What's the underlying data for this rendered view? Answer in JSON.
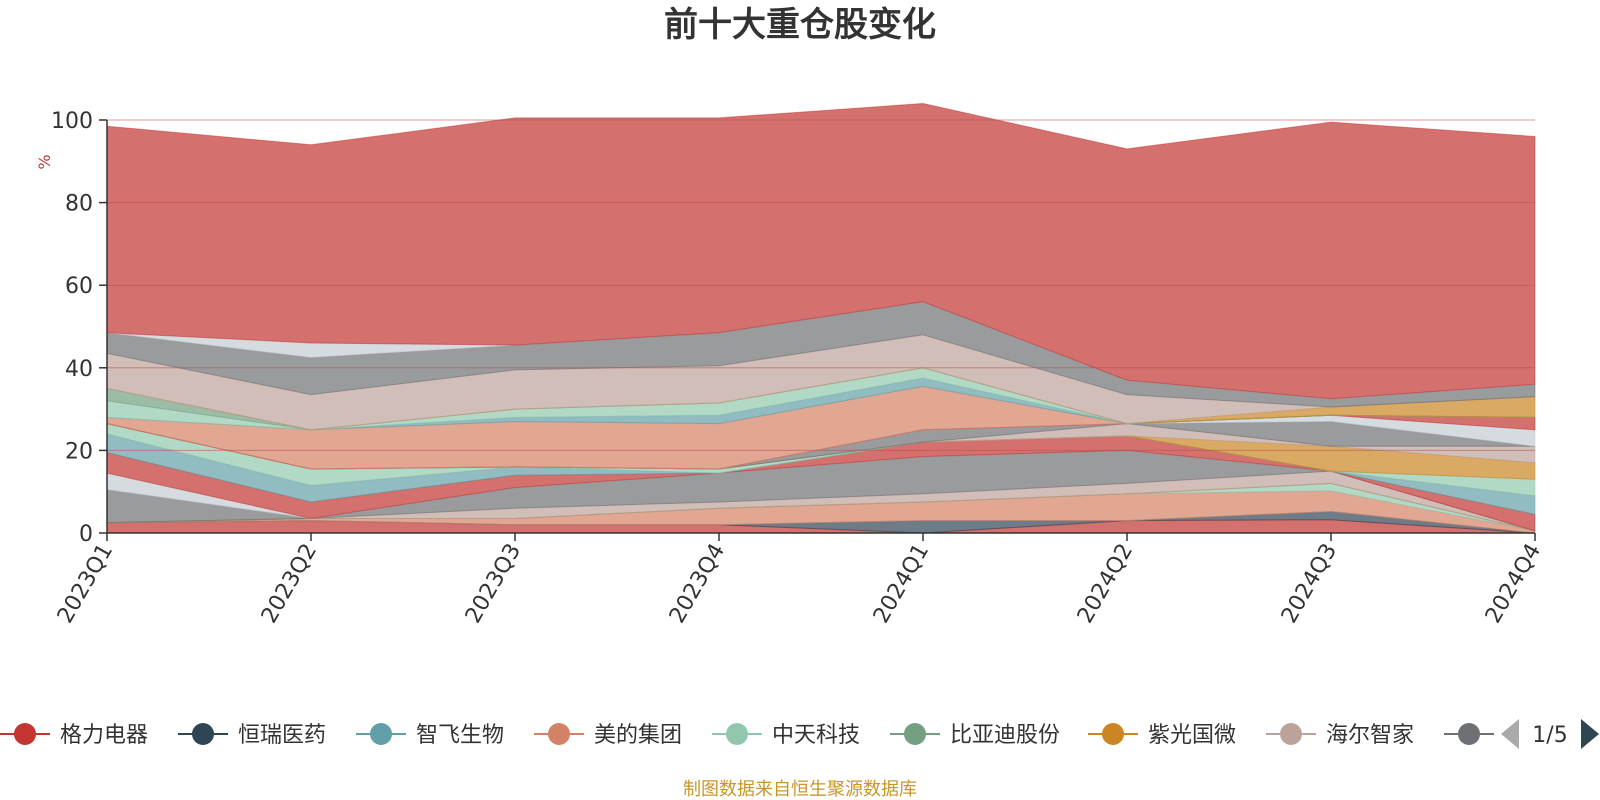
{
  "chart_data": {
    "type": "area",
    "stacked": true,
    "title": "前十大重仓股变化",
    "ylabel": "%",
    "ylim": [
      0,
      100
    ],
    "yticks": [
      0,
      20,
      40,
      60,
      80,
      100
    ],
    "categories": [
      "2023Q1",
      "2023Q2",
      "2023Q3",
      "2023Q4",
      "2024Q1",
      "2024Q2",
      "2024Q3",
      "2024Q4"
    ],
    "series": [
      {
        "name": "格力电器",
        "color": "#c23531",
        "values": [
          2.5,
          3,
          2,
          2,
          0,
          3,
          3.2,
          0
        ]
      },
      {
        "name": "恒瑞医药",
        "color": "#2f4554",
        "values": [
          0,
          0,
          0,
          0,
          3,
          0,
          2,
          0
        ]
      },
      {
        "name": "智飞生物",
        "color": "#61a0a8",
        "values": [
          0,
          0,
          0,
          0,
          0,
          0,
          0,
          0
        ]
      },
      {
        "name": "美的集团",
        "color": "#d48265",
        "values": [
          0,
          0.5,
          1.5,
          4,
          4.5,
          6.5,
          5,
          0.5
        ]
      },
      {
        "name": "中天科技",
        "color": "#91c7ae",
        "values": [
          0,
          0,
          0,
          0,
          0,
          0,
          1.8,
          0
        ]
      },
      {
        "name": "比亚迪股份",
        "color": "#749f83",
        "values": [
          0,
          0,
          0,
          0,
          0,
          0,
          0,
          0
        ]
      },
      {
        "name": "紫光国微",
        "color": "#ca8622",
        "values": [
          0,
          0,
          0,
          0,
          0,
          0,
          0,
          0
        ]
      },
      {
        "name": "海尔智家",
        "color": "#bda29a",
        "values": [
          0,
          0,
          2.5,
          1.5,
          2,
          2.5,
          3,
          0
        ]
      },
      {
        "name": "",
        "color": "#6e7074",
        "values": [
          8,
          0,
          5,
          7,
          9,
          8,
          0,
          0
        ]
      },
      {
        "name": "",
        "color": "#c4ccd3",
        "values": [
          4,
          0,
          0,
          0,
          0,
          0,
          0,
          0
        ]
      },
      {
        "name": "",
        "color": "#c23531",
        "values": [
          5,
          4,
          3,
          0,
          3.5,
          3.5,
          0,
          4
        ]
      },
      {
        "name": "",
        "color": "#61a0a8",
        "values": [
          4.5,
          4,
          2,
          0,
          0,
          0,
          0,
          4.5
        ]
      },
      {
        "name": "",
        "color": "#91c7ae",
        "values": [
          2.5,
          4,
          0,
          1,
          0,
          0,
          0,
          4
        ]
      },
      {
        "name": "",
        "color": "#ca8622",
        "values": [
          0,
          0,
          0,
          0,
          0,
          0,
          6,
          4
        ]
      },
      {
        "name": "",
        "color": "#bda29a",
        "values": [
          0,
          0,
          0,
          0,
          0,
          3,
          0,
          4
        ]
      },
      {
        "name": "",
        "color": "#6e7074",
        "values": [
          0,
          0,
          0,
          0,
          3,
          0,
          6,
          0
        ]
      },
      {
        "name": "",
        "color": "#c4ccd3",
        "values": [
          0,
          0,
          0,
          0,
          0,
          0,
          1.5,
          4
        ]
      },
      {
        "name": "",
        "color": "#c23531",
        "values": [
          0,
          0,
          0,
          0,
          0,
          0,
          0,
          3
        ]
      },
      {
        "name": "",
        "color": "#d48265",
        "values": [
          1.5,
          9.5,
          11,
          11,
          10.5,
          0,
          0,
          0
        ]
      },
      {
        "name": "",
        "color": "#61a0a8",
        "values": [
          0,
          0,
          1,
          2,
          2,
          0,
          0,
          0
        ]
      },
      {
        "name": "",
        "color": "#91c7ae",
        "values": [
          4,
          0,
          2,
          3,
          2.5,
          0,
          0,
          0
        ]
      },
      {
        "name": "",
        "color": "#749f83",
        "values": [
          3,
          0,
          0,
          0,
          0,
          0,
          0,
          0
        ]
      },
      {
        "name": "",
        "color": "#ca8622",
        "values": [
          0,
          0,
          0,
          0,
          0,
          0,
          2,
          5
        ]
      },
      {
        "name": "",
        "color": "#bda29a",
        "values": [
          8.5,
          8.5,
          9.5,
          9,
          8,
          7,
          0,
          0
        ]
      },
      {
        "name": "",
        "color": "#6e7074",
        "values": [
          5,
          9,
          6,
          8,
          8,
          3.5,
          2,
          3
        ]
      },
      {
        "name": "",
        "color": "#c4ccd3",
        "values": [
          0,
          3.5,
          0,
          0,
          0,
          0,
          0,
          0
        ]
      },
      {
        "name": "",
        "color": "#c23531",
        "values": [
          50,
          48,
          55,
          52,
          48,
          56,
          67,
          60
        ]
      }
    ]
  },
  "legend": {
    "page": "1/5",
    "visible_items": [
      {
        "name": "格力电器",
        "color": "#c23531"
      },
      {
        "name": "恒瑞医药",
        "color": "#2f4554"
      },
      {
        "name": "智飞生物",
        "color": "#61a0a8"
      },
      {
        "name": "美的集团",
        "color": "#d48265"
      },
      {
        "name": "中天科技",
        "color": "#91c7ae"
      },
      {
        "name": "比亚迪股份",
        "color": "#749f83"
      },
      {
        "name": "紫光国微",
        "color": "#ca8622"
      },
      {
        "name": "海尔智家",
        "color": "#bda29a"
      },
      {
        "name": "",
        "color": "#6e7074"
      }
    ],
    "prev_arrow_color": "#aaaaaa",
    "next_arrow_color": "#2f4554"
  },
  "footer": {
    "source": "制图数据来自恒生聚源数据库",
    "source_color": "#c9952b"
  },
  "colors": {
    "axis": "#333333",
    "grid": "#b84c4c",
    "ylabel": "#c23531",
    "title": "#333333"
  }
}
